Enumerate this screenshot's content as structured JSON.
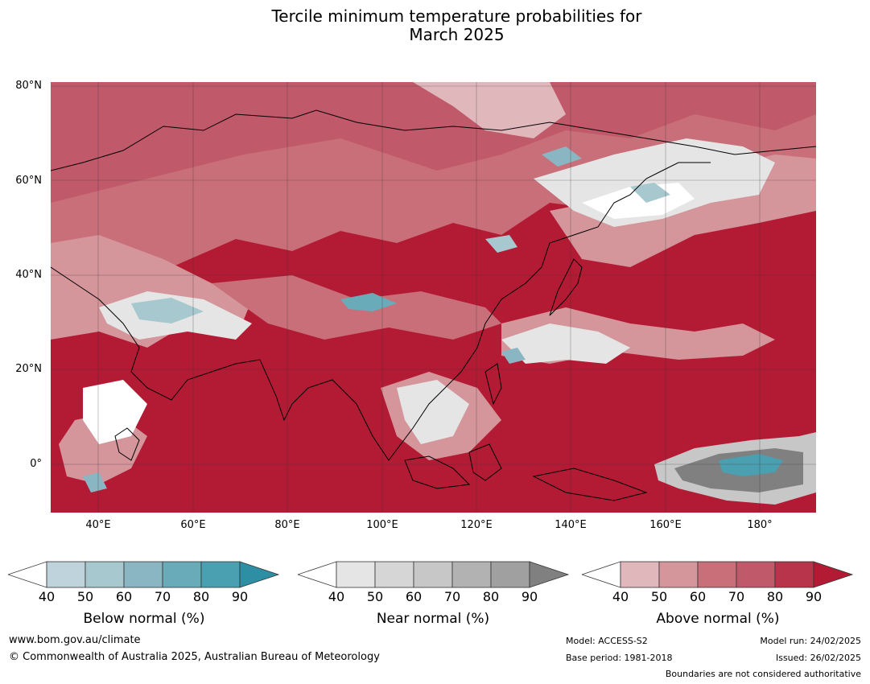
{
  "title": {
    "line1": "Tercile minimum temperature probabilities for",
    "line2": "March 2025"
  },
  "map": {
    "lat_labels": [
      "80°N",
      "60°N",
      "40°N",
      "20°N",
      "0°"
    ],
    "lon_labels": [
      "40°E",
      "60°E",
      "80°E",
      "100°E",
      "120°E",
      "140°E",
      "160°E",
      "180°"
    ],
    "background_category": "Above normal 90%"
  },
  "colorbars": [
    {
      "title": "Below normal (%)",
      "ticks": [
        "40",
        "50",
        "60",
        "70",
        "80",
        "90"
      ],
      "colors": [
        "#ffffff",
        "#bed3db",
        "#a6c8ce",
        "#8ab6c3",
        "#6aabb9",
        "#4a9fb0",
        "#2e8fa4"
      ]
    },
    {
      "title": "Near normal (%)",
      "ticks": [
        "40",
        "50",
        "60",
        "70",
        "80",
        "90"
      ],
      "colors": [
        "#ffffff",
        "#e5e5e5",
        "#d6d6d6",
        "#c7c7c7",
        "#b2b2b2",
        "#a0a0a0",
        "#808080"
      ]
    },
    {
      "title": "Above normal (%)",
      "ticks": [
        "40",
        "50",
        "60",
        "70",
        "80",
        "90"
      ],
      "colors": [
        "#ffffff",
        "#e0b8bc",
        "#d4959b",
        "#c86f7a",
        "#c0596a",
        "#b8344a",
        "#b31b34"
      ]
    }
  ],
  "footer": {
    "website": "www.bom.gov.au/climate",
    "copyright": "© Commonwealth of Australia 2025, Australian Bureau of Meteorology",
    "model": "Model: ACCESS-S2",
    "base_period": "Base period: 1981-2018",
    "model_run": "Model run: 24/02/2025",
    "issued": "Issued: 26/02/2025",
    "disclaimer": "Boundaries are not considered authoritative"
  }
}
